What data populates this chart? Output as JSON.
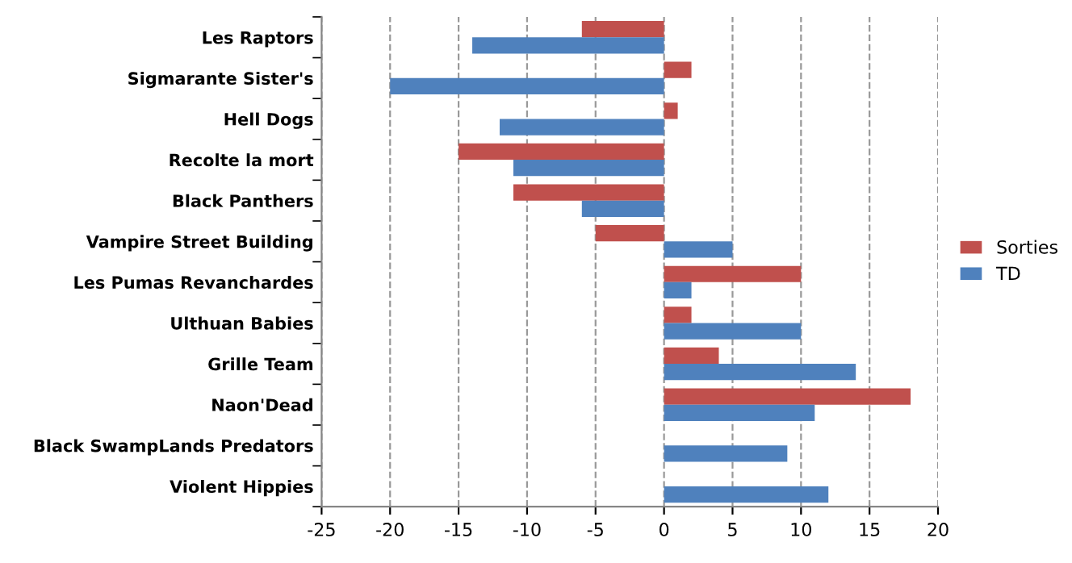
{
  "chart_data": {
    "type": "bar",
    "orientation": "horizontal",
    "categories": [
      "Les Raptors",
      "Sigmarante Sister's",
      "Hell Dogs",
      "Recolte la mort",
      "Black Panthers",
      "Vampire Street Building",
      "Les Pumas Revanchardes",
      "Ulthuan Babies",
      "Grille Team",
      "Naon'Dead",
      "Black SwampLands Predators",
      "Violent Hippies"
    ],
    "series": [
      {
        "name": "Sorties",
        "color": "#c0504d",
        "values": [
          -6,
          2,
          1,
          -15,
          -11,
          -5,
          10,
          2,
          4,
          18,
          0,
          0
        ]
      },
      {
        "name": "TD",
        "color": "#4f81bd",
        "values": [
          -14,
          -20,
          -12,
          -11,
          -6,
          5,
          2,
          10,
          14,
          11,
          9,
          12
        ]
      }
    ],
    "xlim": [
      -25,
      20
    ],
    "xticks": [
      -25,
      -20,
      -15,
      -10,
      -5,
      0,
      5,
      10,
      15,
      20
    ],
    "grid": "x",
    "legend": "right"
  }
}
